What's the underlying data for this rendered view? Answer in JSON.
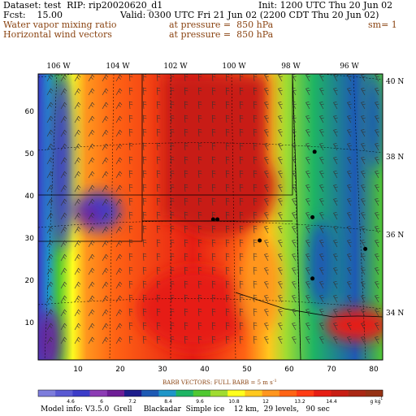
{
  "header": {
    "dataset": "Dataset: test  RIP: rip20020620_d1",
    "init": "Init: 1200 UTC Thu 20 Jun 02",
    "fcst": "Fcst:    15.00",
    "valid": "Valid: 0300 UTC Fri 21 Jun 02 (2200 CDT Thu 20 Jun 02)",
    "field1": "Water vapor mixing ratio",
    "pressure1": "at pressure =  850 hPa",
    "sm": "sm= 1",
    "field2": "Horizontal wind vectors",
    "pressure2": "at pressure =  850 hPa"
  },
  "map": {
    "lon_labels": [
      "106 W",
      "104 W",
      "102 W",
      "100 W",
      "98 W",
      "96 W"
    ],
    "lat_labels": [
      "40 N",
      "38 N",
      "36 N",
      "34 N"
    ],
    "y_ticks": [
      "60",
      "50",
      "40",
      "30",
      "20",
      "10"
    ],
    "x_ticks": [
      "10",
      "20",
      "30",
      "40",
      "50",
      "60",
      "70",
      "80"
    ],
    "cities": [
      {
        "x": 42,
        "y": 35
      },
      {
        "x": 43,
        "y": 35
      },
      {
        "x": 53,
        "y": 30
      },
      {
        "x": 66,
        "y": 51
      },
      {
        "x": 65.5,
        "y": 35.5
      },
      {
        "x": 65.5,
        "y": 21
      },
      {
        "x": 78,
        "y": 28
      }
    ]
  },
  "legend": {
    "barb_title": "BARB VECTORS:  FULL BARB = 5 m s",
    "labels": [
      "4.6",
      "6",
      "7.2",
      "8.4",
      "9.6",
      "10.8",
      "12",
      "13.2",
      "14.4",
      "g kg"
    ],
    "colors": [
      "#7d7ddc",
      "#5a5ad2",
      "#3c3cc8",
      "#8c3cb4",
      "#6e1e96",
      "#1e1e8c",
      "#1e5ab4",
      "#1e96c8",
      "#1eb464",
      "#50c832",
      "#a0dc32",
      "#ffff1e",
      "#ffc81e",
      "#ff961e",
      "#ff6414",
      "#ff3c14",
      "#e61e14",
      "#c81e14",
      "#aa2814",
      "#963214"
    ]
  },
  "footer": {
    "model_info": "Model info: V3.5.0  Grell     Blackadar  Simple ice    12 km,  29 levels,   90 sec"
  }
}
